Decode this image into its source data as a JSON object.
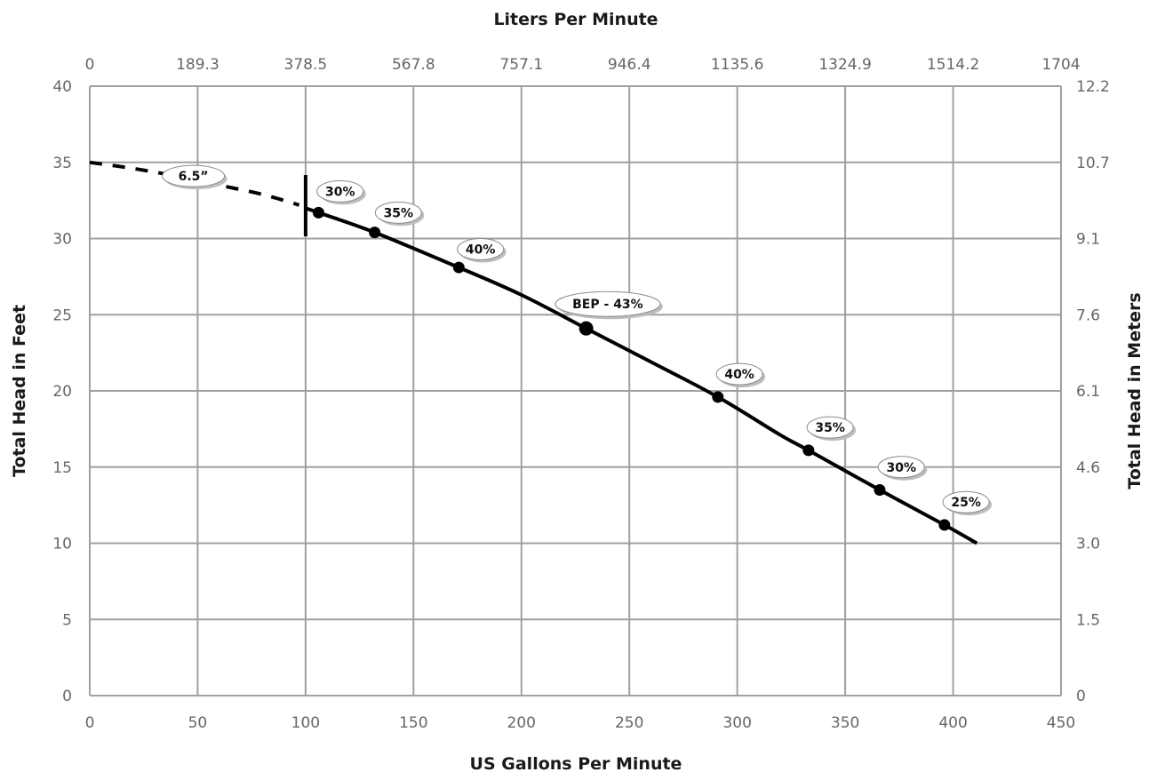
{
  "chart_data": {
    "type": "line",
    "title": "",
    "xlabel": "US Gallons Per Minute",
    "ylabel": "Total Head in Feet",
    "x2label": "Liters Per Minute",
    "y2label": "Total Head in Meters",
    "xlim": [
      0,
      450
    ],
    "ylim": [
      0,
      40
    ],
    "x_ticks": [
      0,
      50,
      100,
      150,
      200,
      250,
      300,
      350,
      400,
      450
    ],
    "x_tick_labels": [
      "0",
      "50",
      "100",
      "150",
      "200",
      "250",
      "300",
      "350",
      "400",
      "450"
    ],
    "y_ticks": [
      0,
      5,
      10,
      15,
      20,
      25,
      30,
      35,
      40
    ],
    "y_tick_labels": [
      "0",
      "5",
      "10",
      "15",
      "20",
      "25",
      "30",
      "35",
      "40"
    ],
    "x2_tick_labels": [
      "0",
      "189.3",
      "378.5",
      "567.8",
      "757.1",
      "946.4",
      "1135.6",
      "1324.9",
      "1514.2",
      "1704"
    ],
    "y2_tick_labels": [
      "0",
      "1.5",
      "3.0",
      "4.6",
      "6.1",
      "7.6",
      "9.1",
      "10.7",
      "12.2"
    ],
    "grid": true,
    "series": [
      {
        "name": "6.5”",
        "dashed_segment": {
          "x": [
            0,
            20,
            40,
            60,
            80,
            97
          ],
          "y": [
            35.0,
            34.6,
            34.1,
            33.5,
            32.9,
            32.2
          ]
        },
        "curve": {
          "x": [
            100,
            106,
            132,
            171,
            200,
            230,
            260,
            291,
            320,
            333,
            366,
            396,
            411
          ],
          "y": [
            32.0,
            31.7,
            30.4,
            28.1,
            26.3,
            24.1,
            21.9,
            19.6,
            17.1,
            16.1,
            13.5,
            11.2,
            10.0
          ]
        },
        "points": {
          "x": [
            106,
            132,
            171,
            230,
            291,
            333,
            366,
            396
          ],
          "y": [
            31.7,
            30.4,
            28.1,
            24.1,
            19.6,
            16.1,
            13.5,
            11.2
          ],
          "labels": [
            "30%",
            "35%",
            "40%",
            "BEP - 43%",
            "40%",
            "35%",
            "30%",
            "25%"
          ]
        },
        "min_flow_marker_x": 100
      }
    ],
    "annotations": [
      {
        "text": "6.5”",
        "x": 48,
        "y": 34.1
      },
      {
        "text": "30%",
        "x": 116,
        "y": 33.1
      },
      {
        "text": "35%",
        "x": 143,
        "y": 31.7
      },
      {
        "text": "40%",
        "x": 181,
        "y": 29.3
      },
      {
        "text": "BEP - 43%",
        "x": 240,
        "y": 25.7
      },
      {
        "text": "40%",
        "x": 301,
        "y": 21.1
      },
      {
        "text": "35%",
        "x": 343,
        "y": 17.6
      },
      {
        "text": "30%",
        "x": 376,
        "y": 15.0
      },
      {
        "text": "25%",
        "x": 406,
        "y": 12.7
      }
    ],
    "colors": {
      "curve": "#000000",
      "grid": "#a0a0a0",
      "tick_text": "#666666",
      "title_text": "#1a1a1a"
    }
  }
}
